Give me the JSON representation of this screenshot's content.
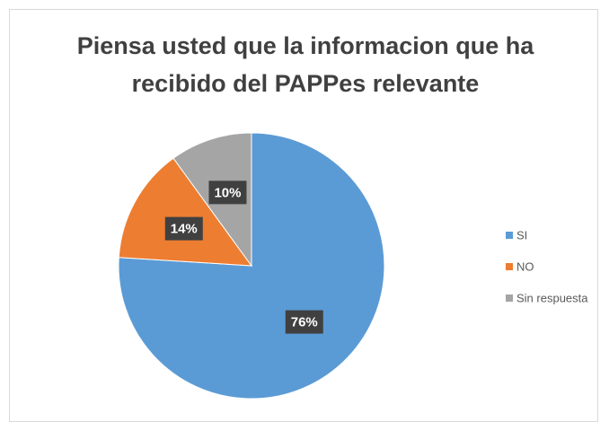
{
  "chart_data": {
    "type": "pie",
    "title": "Piensa usted que la informacion que ha recibido del PAPPes relevante",
    "categories": [
      "SI",
      "NO",
      "Sin respuesta"
    ],
    "values": [
      76,
      14,
      10
    ],
    "value_labels": [
      "76%",
      "14%",
      "10%"
    ],
    "colors": [
      "#5b9bd5",
      "#ed7d31",
      "#a5a5a5"
    ],
    "legend": "right"
  }
}
